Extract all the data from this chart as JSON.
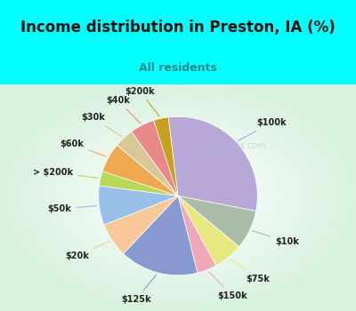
{
  "title": "Income distribution in Preston, IA (%)",
  "subtitle": "All residents",
  "watermark": "© City-Data.com",
  "bg_top": "#00FFFF",
  "labels": [
    "$100k",
    "$10k",
    "$75k",
    "$150k",
    "$125k",
    "$20k",
    "$50k",
    "> $200k",
    "$60k",
    "$30k",
    "$40k",
    "$200k"
  ],
  "values": [
    30,
    8,
    6,
    4,
    16,
    7,
    8,
    3,
    6,
    4,
    5,
    3
  ],
  "colors": [
    "#b8a8d8",
    "#a8bca8",
    "#e8e880",
    "#f0a8b8",
    "#8898d0",
    "#f8c898",
    "#98c0e8",
    "#b8d858",
    "#f0a850",
    "#d8c898",
    "#e88888",
    "#c8a020"
  ],
  "startangle": 97,
  "title_fontsize": 12,
  "subtitle_fontsize": 9,
  "label_fontsize": 7
}
